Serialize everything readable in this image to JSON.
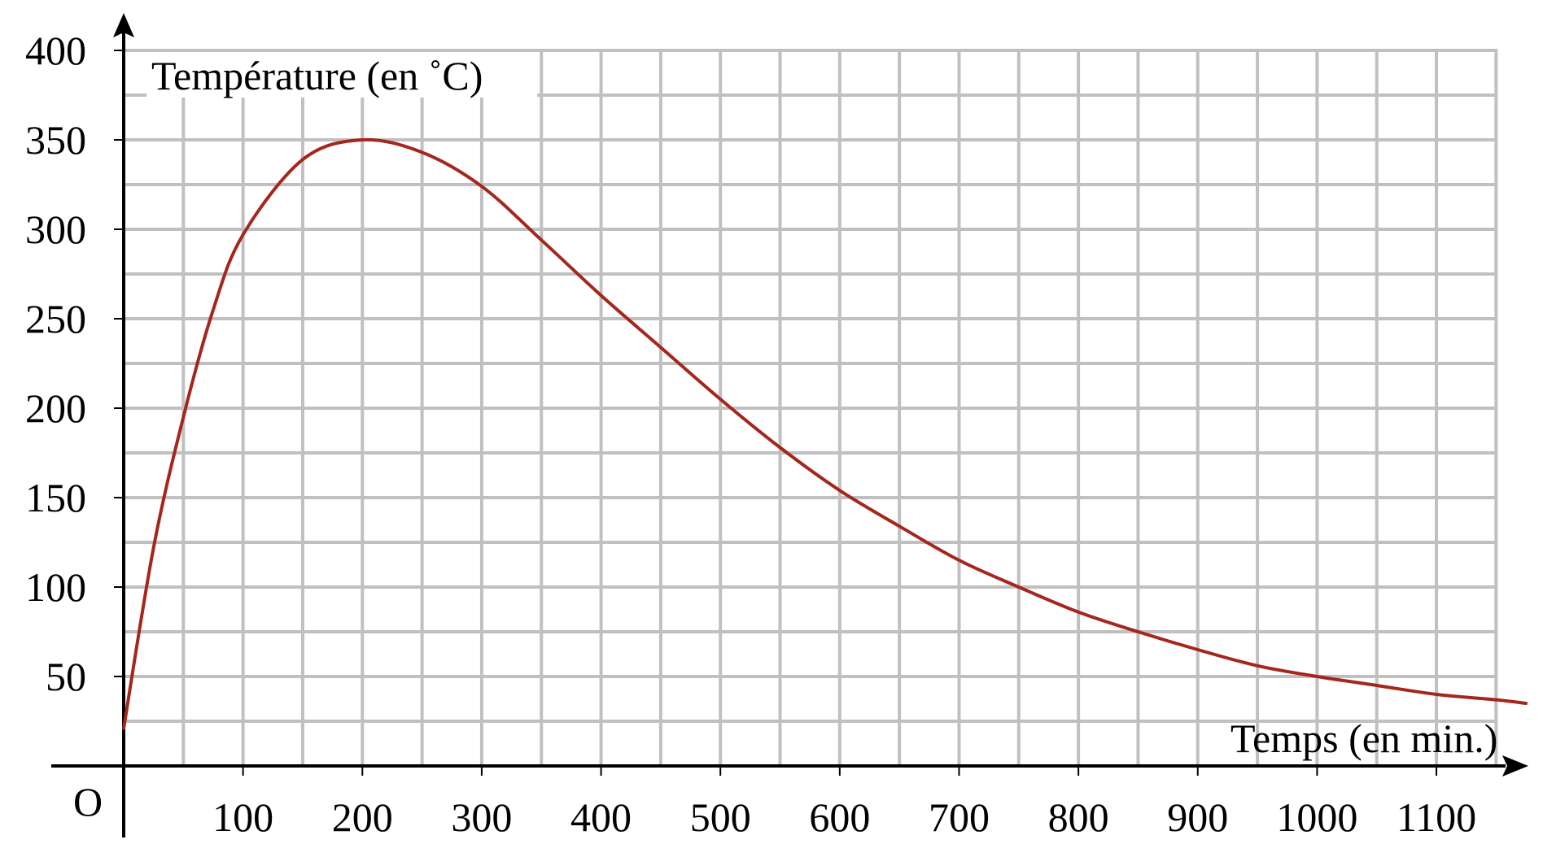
{
  "chart_data": {
    "type": "line",
    "title": "",
    "xlabel": "Temps (en min.)",
    "ylabel": "Température (en ˚C)",
    "origin_label": "O",
    "xlim": [
      0,
      1175
    ],
    "ylim": [
      0,
      400
    ],
    "grid": true,
    "grid_step_x": 50,
    "grid_step_y": 25,
    "x_ticks": [
      100,
      200,
      300,
      400,
      500,
      600,
      700,
      800,
      900,
      1000,
      1100
    ],
    "y_ticks": [
      50,
      100,
      150,
      200,
      250,
      300,
      350,
      400
    ],
    "x_tick_labels": [
      "100",
      "200",
      "300",
      "400",
      "500",
      "600",
      "700",
      "800",
      "900",
      "1000",
      "1100"
    ],
    "y_tick_labels": [
      "50",
      "100",
      "150",
      "200",
      "250",
      "300",
      "350",
      "400"
    ],
    "series": [
      {
        "name": "Température",
        "color": "#a4261c",
        "x": [
          0,
          25,
          50,
          75,
          100,
          150,
          200,
          250,
          300,
          350,
          400,
          450,
          500,
          550,
          600,
          650,
          700,
          750,
          800,
          850,
          900,
          950,
          1000,
          1050,
          1100,
          1150,
          1175
        ],
        "y": [
          21,
          122,
          195,
          255,
          297,
          339,
          350,
          343,
          324,
          294,
          263,
          234,
          205,
          178,
          154,
          134,
          115,
          100,
          86,
          75,
          65,
          56,
          50,
          45,
          40,
          37,
          35
        ]
      }
    ],
    "legend": null
  },
  "colors": {
    "grid": "#c0c0c0",
    "axis": "#000000",
    "curve": "#a4261c",
    "background": "#ffffff"
  }
}
